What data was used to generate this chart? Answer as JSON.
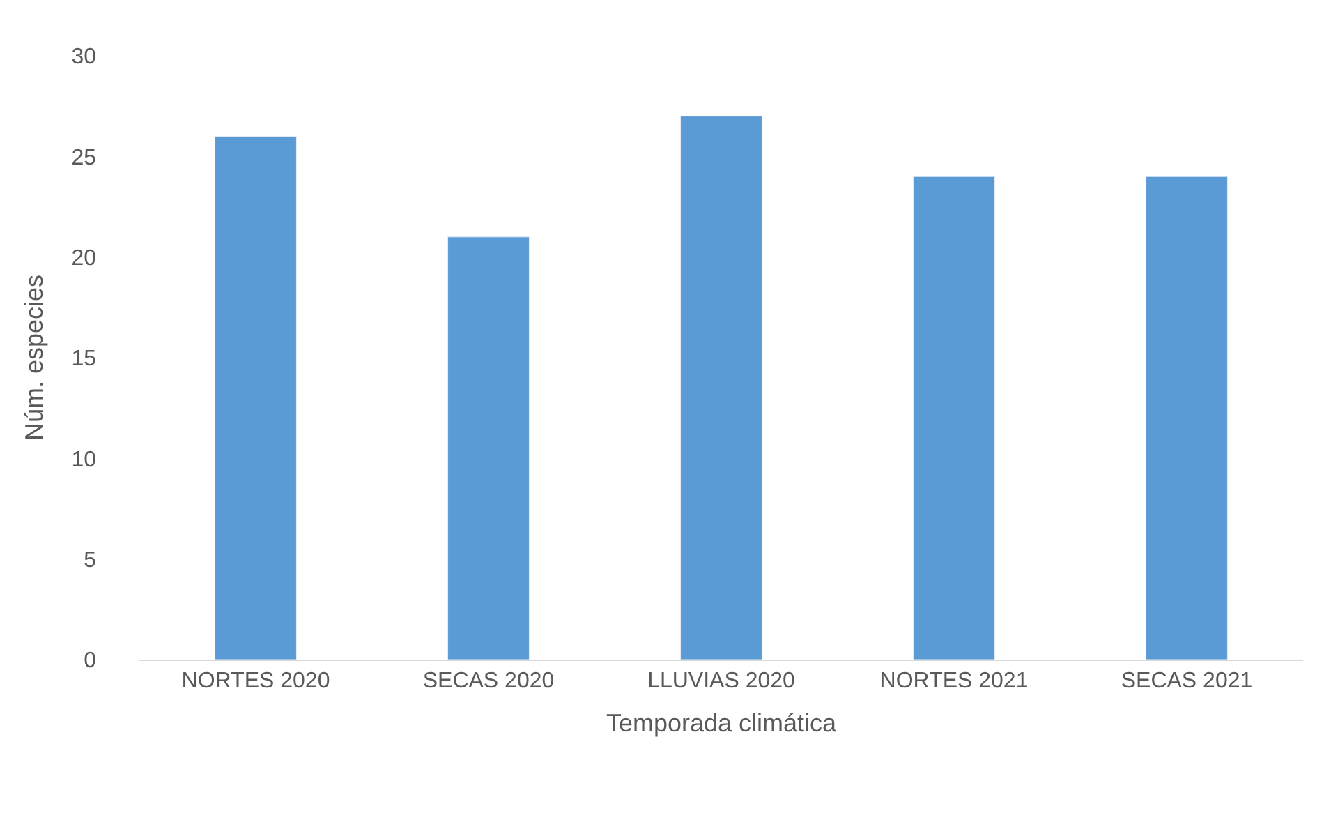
{
  "chart_data": {
    "type": "bar",
    "categories": [
      "NORTES 2020",
      "SECAS 2020",
      "LLUVIAS 2020",
      "NORTES 2021",
      "SECAS 2021"
    ],
    "values": [
      26,
      21,
      27,
      24,
      24
    ],
    "color": "#5b9bd5",
    "xlabel": "Temporada climática",
    "ylabel": "Núm. especies",
    "ylim": [
      0,
      30
    ],
    "yticks": [
      0,
      5,
      10,
      15,
      20,
      25,
      30
    ],
    "grid": false
  }
}
